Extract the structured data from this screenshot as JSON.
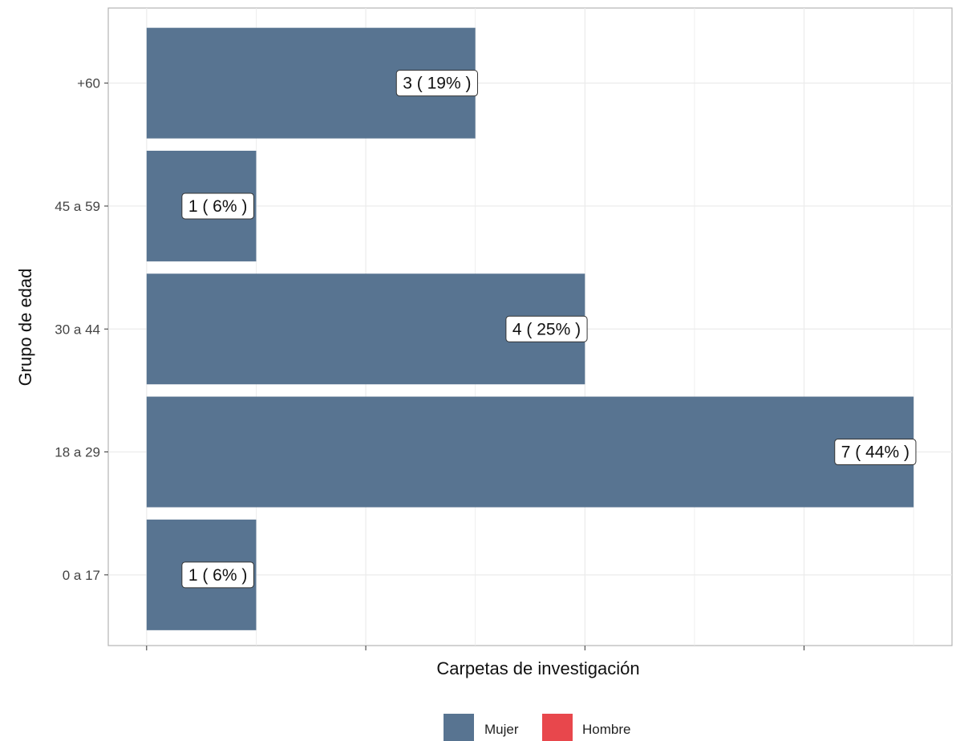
{
  "chart_data": {
    "type": "bar",
    "orientation": "horizontal",
    "categories": [
      "0 a 17",
      "18 a 29",
      "30 a 44",
      "45 a 59",
      "+60"
    ],
    "series": [
      {
        "name": "Mujer",
        "color": "#587491",
        "values": [
          1,
          7,
          4,
          1,
          3
        ],
        "labels": [
          "1 ( 6% )",
          "7 ( 44% )",
          "4 ( 25% )",
          "1 ( 6% )",
          "3 ( 19% )"
        ]
      },
      {
        "name": "Hombre",
        "color": "#e8474c",
        "values": [
          0,
          0,
          0,
          0,
          0
        ]
      }
    ],
    "xlabel": "Carpetas de investigación",
    "ylabel": "Grupo de edad",
    "xlim": [
      -0.35,
      7.35
    ],
    "grid": true,
    "legend": {
      "position": "bottom",
      "entries": [
        {
          "label": "Mujer",
          "color": "#587491"
        },
        {
          "label": "Hombre",
          "color": "#e8474c"
        }
      ]
    }
  }
}
